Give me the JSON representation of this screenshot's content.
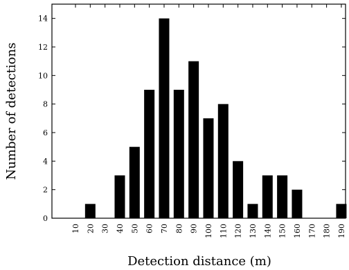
{
  "chart_data": {
    "type": "bar",
    "title": "",
    "xlabel": "Detection distance (m)",
    "ylabel": "Number of detections",
    "categories": [
      "10",
      "20",
      "30",
      "40",
      "50",
      "60",
      "70",
      "80",
      "90",
      "100",
      "110",
      "120",
      "130",
      "140",
      "150",
      "160",
      "170",
      "180",
      "190"
    ],
    "values": [
      0,
      1,
      0,
      3,
      5,
      9,
      14,
      9,
      11,
      7,
      8,
      4,
      1,
      3,
      3,
      2,
      0,
      0,
      1
    ],
    "yticks": [
      "0",
      "2",
      "4",
      "6",
      "8",
      "10",
      "12",
      "14"
    ],
    "ylim": [
      0,
      15
    ],
    "bar_color": "#000000",
    "grid": false,
    "legend": "none"
  }
}
